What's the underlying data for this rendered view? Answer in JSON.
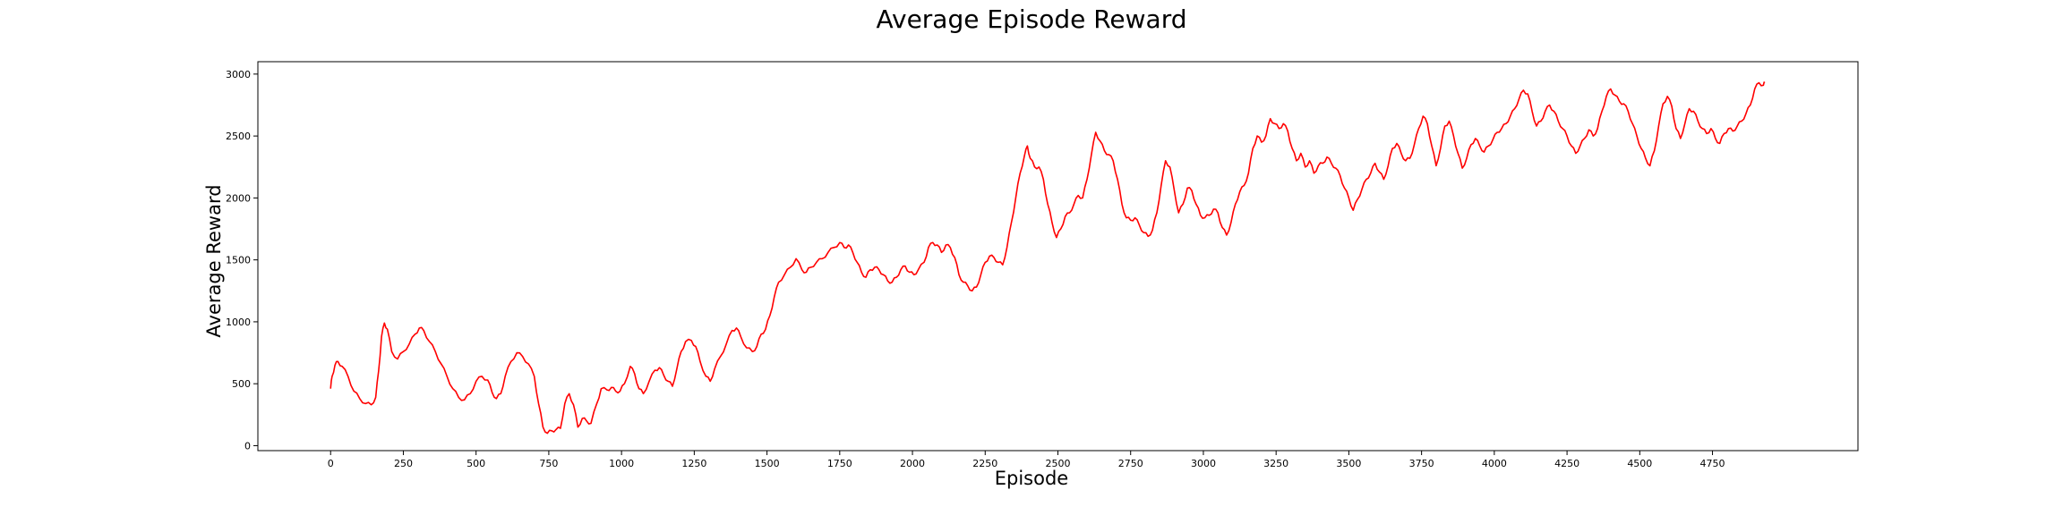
{
  "chart_data": {
    "type": "line",
    "title": "Average Episode Reward",
    "xlabel": "Episode",
    "ylabel": "Average Reward",
    "xlim": [
      -250,
      5250
    ],
    "ylim": [
      -40,
      3100
    ],
    "x_ticks": [
      0,
      250,
      500,
      750,
      1000,
      1250,
      1500,
      1750,
      2000,
      2250,
      2500,
      2750,
      3000,
      3250,
      3500,
      3750,
      4000,
      4250,
      4500,
      4750
    ],
    "y_ticks": [
      0,
      500,
      1000,
      1500,
      2000,
      2500,
      3000
    ],
    "grid": false,
    "series": [
      {
        "color": "#ff0000",
        "points": [
          [
            0,
            460
          ],
          [
            5,
            560
          ],
          [
            15,
            650
          ],
          [
            25,
            680
          ],
          [
            40,
            640
          ],
          [
            60,
            560
          ],
          [
            80,
            440
          ],
          [
            100,
            380
          ],
          [
            120,
            340
          ],
          [
            140,
            330
          ],
          [
            155,
            390
          ],
          [
            165,
            600
          ],
          [
            175,
            880
          ],
          [
            185,
            990
          ],
          [
            195,
            940
          ],
          [
            210,
            760
          ],
          [
            230,
            700
          ],
          [
            250,
            760
          ],
          [
            270,
            820
          ],
          [
            290,
            900
          ],
          [
            305,
            950
          ],
          [
            320,
            930
          ],
          [
            340,
            840
          ],
          [
            360,
            760
          ],
          [
            380,
            660
          ],
          [
            400,
            560
          ],
          [
            420,
            460
          ],
          [
            440,
            390
          ],
          [
            460,
            370
          ],
          [
            480,
            420
          ],
          [
            500,
            520
          ],
          [
            520,
            560
          ],
          [
            540,
            530
          ],
          [
            555,
            430
          ],
          [
            570,
            380
          ],
          [
            585,
            420
          ],
          [
            600,
            560
          ],
          [
            620,
            680
          ],
          [
            640,
            750
          ],
          [
            660,
            720
          ],
          [
            680,
            660
          ],
          [
            700,
            560
          ],
          [
            715,
            340
          ],
          [
            730,
            150
          ],
          [
            745,
            100
          ],
          [
            760,
            120
          ],
          [
            775,
            130
          ],
          [
            790,
            140
          ],
          [
            805,
            340
          ],
          [
            820,
            420
          ],
          [
            835,
            330
          ],
          [
            850,
            150
          ],
          [
            865,
            220
          ],
          [
            880,
            200
          ],
          [
            895,
            180
          ],
          [
            915,
            340
          ],
          [
            930,
            460
          ],
          [
            950,
            450
          ],
          [
            965,
            470
          ],
          [
            980,
            440
          ],
          [
            995,
            440
          ],
          [
            1010,
            500
          ],
          [
            1030,
            640
          ],
          [
            1045,
            580
          ],
          [
            1060,
            460
          ],
          [
            1075,
            420
          ],
          [
            1095,
            520
          ],
          [
            1115,
            610
          ],
          [
            1130,
            630
          ],
          [
            1145,
            570
          ],
          [
            1160,
            520
          ],
          [
            1175,
            480
          ],
          [
            1190,
            620
          ],
          [
            1205,
            760
          ],
          [
            1220,
            840
          ],
          [
            1240,
            850
          ],
          [
            1255,
            800
          ],
          [
            1270,
            680
          ],
          [
            1290,
            560
          ],
          [
            1305,
            520
          ],
          [
            1320,
            620
          ],
          [
            1340,
            720
          ],
          [
            1360,
            820
          ],
          [
            1380,
            930
          ],
          [
            1395,
            950
          ],
          [
            1410,
            880
          ],
          [
            1430,
            790
          ],
          [
            1450,
            760
          ],
          [
            1465,
            800
          ],
          [
            1480,
            900
          ],
          [
            1495,
            940
          ],
          [
            1510,
            1050
          ],
          [
            1525,
            1200
          ],
          [
            1540,
            1320
          ],
          [
            1560,
            1380
          ],
          [
            1580,
            1440
          ],
          [
            1600,
            1510
          ],
          [
            1620,
            1420
          ],
          [
            1635,
            1400
          ],
          [
            1650,
            1440
          ],
          [
            1670,
            1480
          ],
          [
            1690,
            1510
          ],
          [
            1710,
            1560
          ],
          [
            1730,
            1600
          ],
          [
            1750,
            1640
          ],
          [
            1765,
            1600
          ],
          [
            1780,
            1620
          ],
          [
            1795,
            1560
          ],
          [
            1810,
            1480
          ],
          [
            1825,
            1400
          ],
          [
            1840,
            1360
          ],
          [
            1855,
            1420
          ],
          [
            1870,
            1440
          ],
          [
            1885,
            1420
          ],
          [
            1900,
            1380
          ],
          [
            1915,
            1330
          ],
          [
            1930,
            1320
          ],
          [
            1945,
            1360
          ],
          [
            1960,
            1420
          ],
          [
            1975,
            1450
          ],
          [
            1990,
            1400
          ],
          [
            2005,
            1380
          ],
          [
            2020,
            1420
          ],
          [
            2040,
            1480
          ],
          [
            2055,
            1600
          ],
          [
            2070,
            1640
          ],
          [
            2085,
            1620
          ],
          [
            2100,
            1560
          ],
          [
            2115,
            1620
          ],
          [
            2130,
            1600
          ],
          [
            2145,
            1520
          ],
          [
            2160,
            1380
          ],
          [
            2175,
            1320
          ],
          [
            2190,
            1290
          ],
          [
            2205,
            1250
          ],
          [
            2220,
            1280
          ],
          [
            2235,
            1380
          ],
          [
            2250,
            1480
          ],
          [
            2265,
            1530
          ],
          [
            2280,
            1520
          ],
          [
            2295,
            1480
          ],
          [
            2310,
            1460
          ],
          [
            2325,
            1600
          ],
          [
            2340,
            1800
          ],
          [
            2355,
            2000
          ],
          [
            2370,
            2200
          ],
          [
            2385,
            2340
          ],
          [
            2395,
            2420
          ],
          [
            2405,
            2320
          ],
          [
            2420,
            2250
          ],
          [
            2435,
            2250
          ],
          [
            2450,
            2150
          ],
          [
            2465,
            1950
          ],
          [
            2480,
            1800
          ],
          [
            2495,
            1680
          ],
          [
            2510,
            1750
          ],
          [
            2525,
            1850
          ],
          [
            2540,
            1880
          ],
          [
            2555,
            1950
          ],
          [
            2570,
            2020
          ],
          [
            2585,
            2000
          ],
          [
            2600,
            2150
          ],
          [
            2615,
            2350
          ],
          [
            2630,
            2530
          ],
          [
            2645,
            2460
          ],
          [
            2660,
            2380
          ],
          [
            2675,
            2350
          ],
          [
            2690,
            2300
          ],
          [
            2705,
            2150
          ],
          [
            2720,
            1950
          ],
          [
            2735,
            1840
          ],
          [
            2750,
            1820
          ],
          [
            2765,
            1840
          ],
          [
            2780,
            1780
          ],
          [
            2795,
            1720
          ],
          [
            2810,
            1690
          ],
          [
            2825,
            1740
          ],
          [
            2840,
            1880
          ],
          [
            2855,
            2100
          ],
          [
            2870,
            2300
          ],
          [
            2885,
            2250
          ],
          [
            2900,
            2060
          ],
          [
            2915,
            1880
          ],
          [
            2930,
            1950
          ],
          [
            2945,
            2080
          ],
          [
            2960,
            2060
          ],
          [
            2975,
            1950
          ],
          [
            2990,
            1860
          ],
          [
            3005,
            1840
          ],
          [
            3020,
            1860
          ],
          [
            3035,
            1910
          ],
          [
            3050,
            1880
          ],
          [
            3065,
            1760
          ],
          [
            3080,
            1700
          ],
          [
            3095,
            1800
          ],
          [
            3110,
            1950
          ],
          [
            3125,
            2050
          ],
          [
            3140,
            2100
          ],
          [
            3155,
            2200
          ],
          [
            3170,
            2400
          ],
          [
            3185,
            2500
          ],
          [
            3200,
            2450
          ],
          [
            3215,
            2500
          ],
          [
            3230,
            2640
          ],
          [
            3245,
            2600
          ],
          [
            3260,
            2560
          ],
          [
            3275,
            2600
          ],
          [
            3290,
            2540
          ],
          [
            3305,
            2400
          ],
          [
            3320,
            2300
          ],
          [
            3335,
            2360
          ],
          [
            3350,
            2250
          ],
          [
            3365,
            2300
          ],
          [
            3380,
            2200
          ],
          [
            3395,
            2260
          ],
          [
            3410,
            2280
          ],
          [
            3425,
            2330
          ],
          [
            3440,
            2280
          ],
          [
            3455,
            2240
          ],
          [
            3470,
            2180
          ],
          [
            3485,
            2080
          ],
          [
            3500,
            2000
          ],
          [
            3515,
            1900
          ],
          [
            3530,
            1990
          ],
          [
            3545,
            2070
          ],
          [
            3560,
            2150
          ],
          [
            3575,
            2200
          ],
          [
            3590,
            2280
          ],
          [
            3605,
            2210
          ],
          [
            3620,
            2150
          ],
          [
            3635,
            2260
          ],
          [
            3650,
            2400
          ],
          [
            3665,
            2440
          ],
          [
            3680,
            2360
          ],
          [
            3695,
            2300
          ],
          [
            3710,
            2320
          ],
          [
            3725,
            2430
          ],
          [
            3740,
            2560
          ],
          [
            3755,
            2660
          ],
          [
            3770,
            2600
          ],
          [
            3785,
            2420
          ],
          [
            3800,
            2260
          ],
          [
            3815,
            2400
          ],
          [
            3830,
            2580
          ],
          [
            3845,
            2620
          ],
          [
            3860,
            2500
          ],
          [
            3875,
            2360
          ],
          [
            3890,
            2240
          ],
          [
            3905,
            2320
          ],
          [
            3920,
            2430
          ],
          [
            3935,
            2480
          ],
          [
            3950,
            2420
          ],
          [
            3965,
            2370
          ],
          [
            3980,
            2420
          ],
          [
            3995,
            2470
          ],
          [
            4010,
            2530
          ],
          [
            4025,
            2560
          ],
          [
            4040,
            2600
          ],
          [
            4055,
            2660
          ],
          [
            4070,
            2720
          ],
          [
            4085,
            2800
          ],
          [
            4100,
            2870
          ],
          [
            4115,
            2840
          ],
          [
            4130,
            2700
          ],
          [
            4145,
            2580
          ],
          [
            4160,
            2620
          ],
          [
            4175,
            2700
          ],
          [
            4190,
            2750
          ],
          [
            4205,
            2700
          ],
          [
            4220,
            2620
          ],
          [
            4235,
            2560
          ],
          [
            4250,
            2500
          ],
          [
            4265,
            2420
          ],
          [
            4280,
            2360
          ],
          [
            4295,
            2420
          ],
          [
            4310,
            2480
          ],
          [
            4325,
            2550
          ],
          [
            4340,
            2500
          ],
          [
            4355,
            2560
          ],
          [
            4370,
            2700
          ],
          [
            4385,
            2820
          ],
          [
            4400,
            2880
          ],
          [
            4415,
            2830
          ],
          [
            4430,
            2780
          ],
          [
            4445,
            2760
          ],
          [
            4460,
            2700
          ],
          [
            4475,
            2600
          ],
          [
            4490,
            2500
          ],
          [
            4505,
            2400
          ],
          [
            4520,
            2320
          ],
          [
            4535,
            2260
          ],
          [
            4550,
            2380
          ],
          [
            4565,
            2580
          ],
          [
            4580,
            2760
          ],
          [
            4595,
            2820
          ],
          [
            4610,
            2740
          ],
          [
            4625,
            2560
          ],
          [
            4640,
            2480
          ],
          [
            4655,
            2600
          ],
          [
            4670,
            2720
          ],
          [
            4685,
            2700
          ],
          [
            4700,
            2620
          ],
          [
            4715,
            2560
          ],
          [
            4730,
            2520
          ],
          [
            4745,
            2560
          ],
          [
            4760,
            2480
          ],
          [
            4775,
            2440
          ],
          [
            4790,
            2520
          ],
          [
            4805,
            2560
          ],
          [
            4820,
            2540
          ],
          [
            4835,
            2580
          ],
          [
            4850,
            2620
          ],
          [
            4865,
            2680
          ],
          [
            4880,
            2750
          ],
          [
            4895,
            2880
          ],
          [
            4910,
            2930
          ],
          [
            4925,
            2910
          ],
          [
            4930,
            2930
          ]
        ]
      }
    ]
  }
}
